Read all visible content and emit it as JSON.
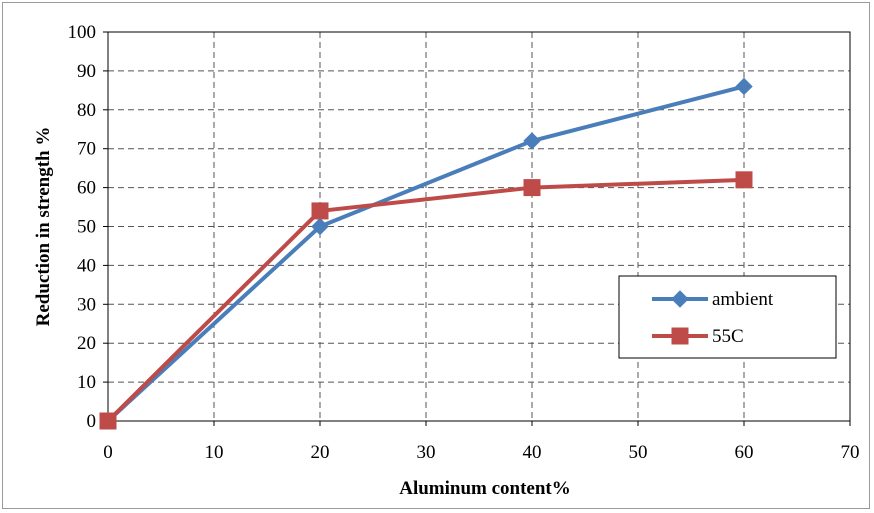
{
  "chart_data": {
    "type": "line",
    "title": "",
    "xlabel": "Aluminum content%",
    "ylabel": "Reduction in strength %",
    "xlim": [
      0,
      70
    ],
    "ylim": [
      0,
      100
    ],
    "x_ticks": [
      0,
      10,
      20,
      30,
      40,
      50,
      60,
      70
    ],
    "y_ticks": [
      0,
      10,
      20,
      30,
      40,
      50,
      60,
      70,
      80,
      90,
      100
    ],
    "grid": true,
    "legend_position": "right",
    "series": [
      {
        "name": "ambient",
        "color": "#4a7ebb",
        "marker": "diamond",
        "x": [
          0,
          20,
          40,
          60
        ],
        "y": [
          0,
          50,
          72,
          86
        ]
      },
      {
        "name": "55C",
        "color": "#be4b48",
        "marker": "square",
        "x": [
          0,
          20,
          40,
          60
        ],
        "y": [
          0,
          54,
          60,
          62
        ]
      }
    ]
  }
}
